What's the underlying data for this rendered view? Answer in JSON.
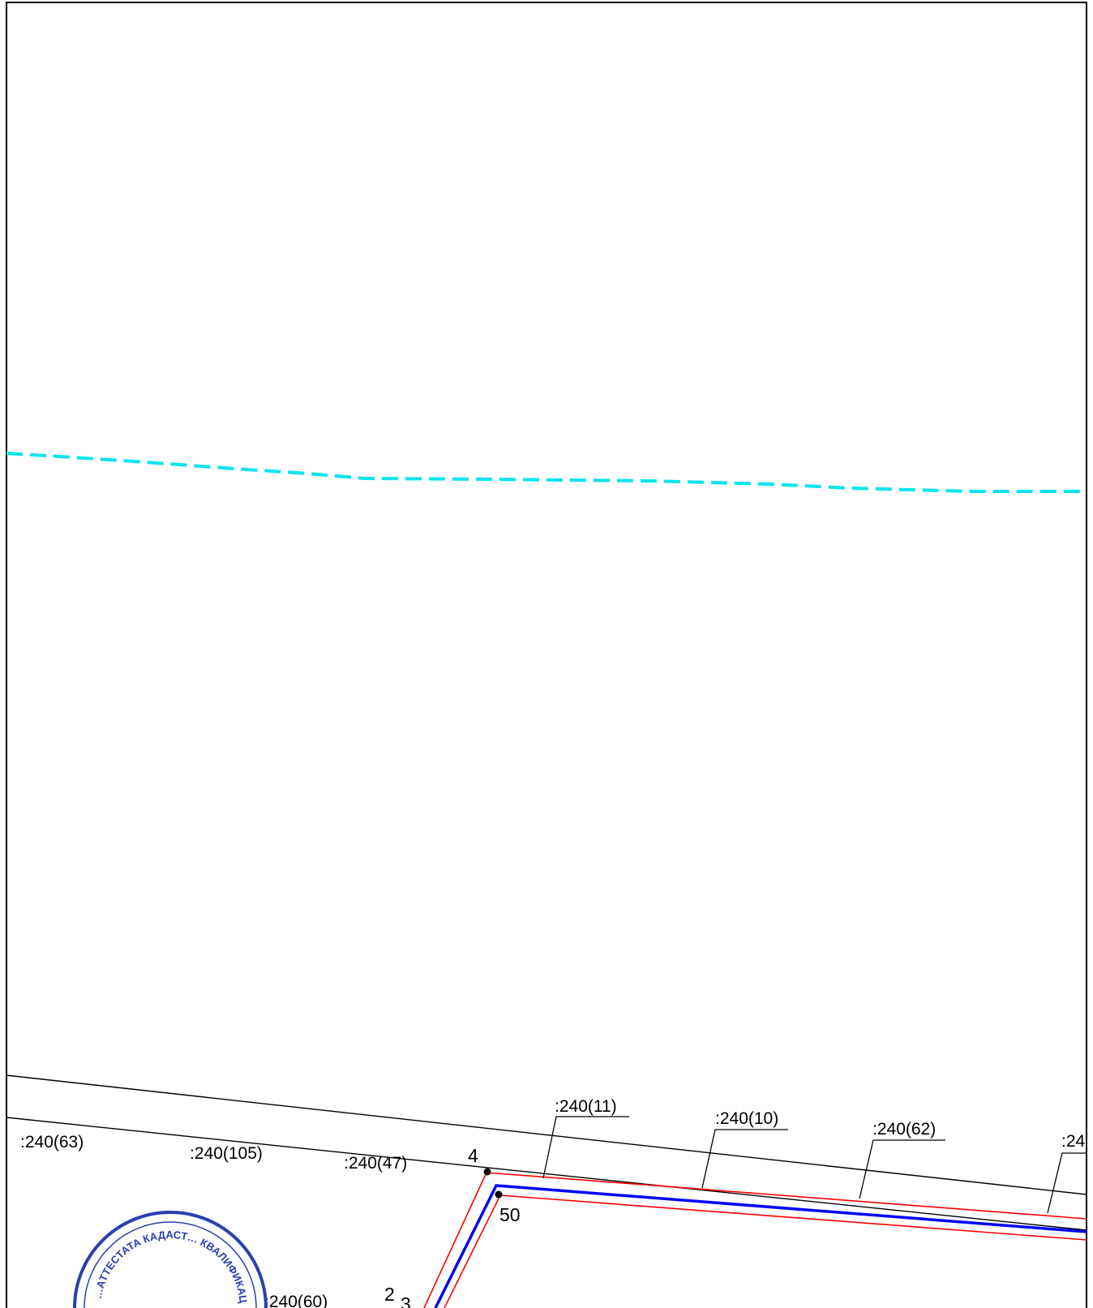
{
  "map": {
    "parcel_labels": [
      ":240(63)",
      ":240(105)",
      ":240(47)",
      ":240(11)",
      ":240(10)",
      ":240(62)",
      ":24",
      ":240(60)"
    ],
    "point_labels": [
      "4",
      "50",
      "2",
      "3"
    ],
    "stamp": {
      "text": "…АТТЕСТАТА КАДАСТ… КВАЛИФИКАЦ…"
    },
    "colors": {
      "frame": "#000000",
      "water_line": "#00e5ee",
      "boundary_red": "#ff0000",
      "boundary_blue": "#0000ff",
      "road": "#000000",
      "stamp": "#2a3fb0"
    }
  }
}
